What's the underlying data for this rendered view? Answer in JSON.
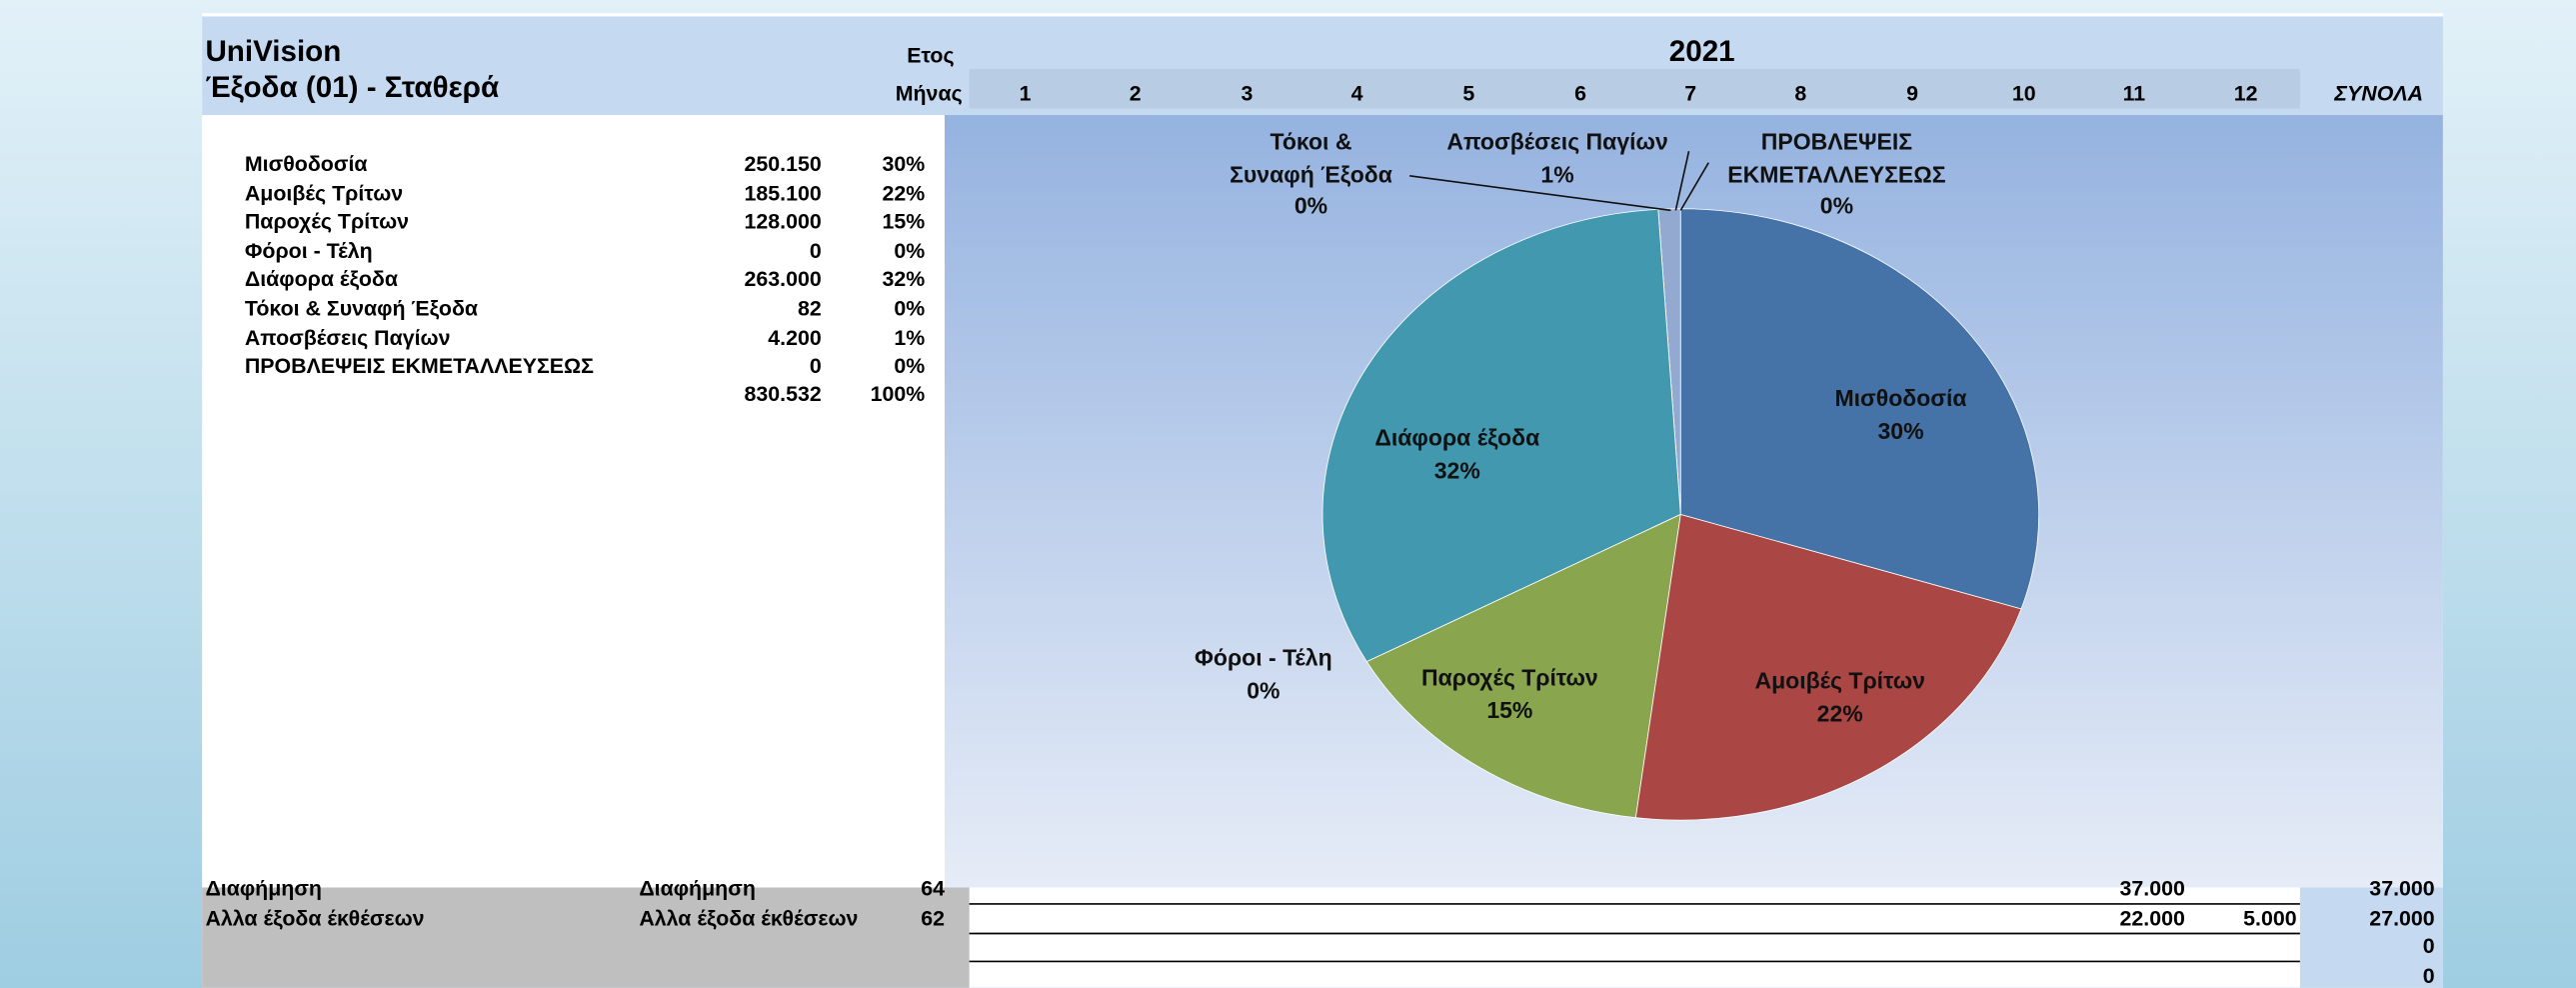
{
  "header": {
    "company": "UniVision",
    "sheet": "Έξοδα (01) - Σταθερά",
    "year_label": "Ετος",
    "year": "2021",
    "month_label": "Μήνας",
    "months": [
      "1",
      "2",
      "3",
      "4",
      "5",
      "6",
      "7",
      "8",
      "9",
      "10",
      "11",
      "12"
    ],
    "totals_label": "ΣΥΝΟΛΑ"
  },
  "summary": {
    "rows": [
      {
        "label": "Μισθοδοσία",
        "amount": "250.150",
        "percent": "30%"
      },
      {
        "label": "Αμοιβές Τρίτων",
        "amount": "185.100",
        "percent": "22%"
      },
      {
        "label": "Παροχές Τρίτων",
        "amount": "128.000",
        "percent": "15%"
      },
      {
        "label": "Φόροι - Τέλη",
        "amount": "0",
        "percent": "0%"
      },
      {
        "label": "Διάφορα έξοδα",
        "amount": "263.000",
        "percent": "32%"
      },
      {
        "label": "Τόκοι & Συναφή Έξοδα",
        "amount": "82",
        "percent": "0%"
      },
      {
        "label": "Αποσβέσεις Παγίων",
        "amount": "4.200",
        "percent": "1%"
      },
      {
        "label": "ΠΡΟΒΛΕΨΕΙΣ ΕΚΜΕΤΑΛΛΕΥΣΕΩΣ",
        "amount": "0",
        "percent": "0%"
      }
    ],
    "total": {
      "amount": "830.532",
      "percent": "100%"
    }
  },
  "chart_data": {
    "type": "pie",
    "categories": [
      "Μισθοδοσία",
      "Αμοιβές Τρίτων",
      "Παροχές Τρίτων",
      "Φόροι - Τέλη",
      "Διάφορα έξοδα",
      "Τόκοι & Συναφή Έξοδα",
      "Αποσβέσεις Παγίων",
      "ΠΡΟΒΛΕΨΕΙΣ ΕΚΜΕΤΑΛΛΕΥΣΕΩΣ"
    ],
    "values": [
      30,
      22,
      15,
      0,
      32,
      0,
      1,
      0
    ],
    "value_labels": [
      "30%",
      "22%",
      "15%",
      "0%",
      "32%",
      "0%",
      "1%",
      "0%"
    ],
    "colors": [
      "#4572a7",
      "#aa4643",
      "#89a54e",
      "#71588f",
      "#4198af",
      "#db843d",
      "#93a9cf",
      "#d19392"
    ]
  },
  "rows": [
    {
      "account": "Διαφήμηση",
      "description": "Διαφήμηση",
      "code": "64",
      "months": {
        "11": "37.000"
      },
      "total": "37.000"
    },
    {
      "account": "Αλλα έξοδα έκθέσεων",
      "description": "Αλλα έξοδα έκθέσεων",
      "code": "62",
      "months": {
        "11": "22.000",
        "12": "5.000"
      },
      "total": "27.000"
    },
    {
      "total": "0"
    },
    {
      "total": "0"
    }
  ]
}
